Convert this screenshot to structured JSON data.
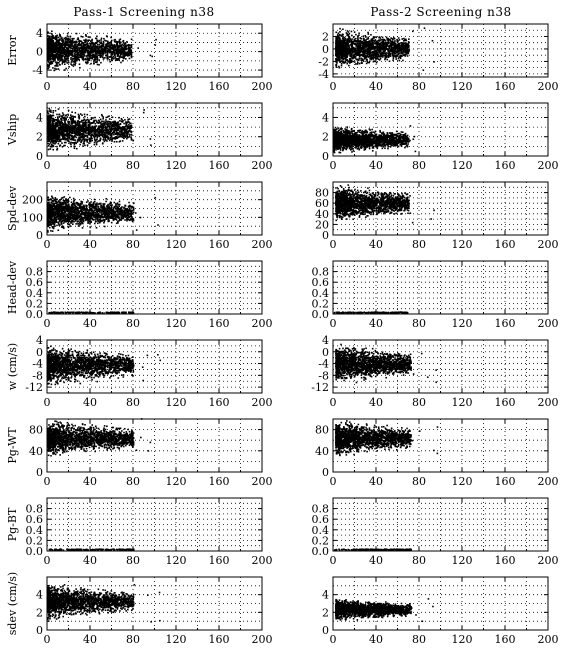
{
  "chart_data": {
    "type": "scatter",
    "columns": [
      {
        "title": "Pass-1 Screening n38"
      },
      {
        "title": "Pass-2 Screening n38"
      }
    ],
    "xticks": [
      "0",
      "40",
      "80",
      "120",
      "160",
      "200"
    ],
    "xlim": [
      0,
      200
    ],
    "grid": true,
    "marker_color": "#000000",
    "rows": [
      {
        "ylabel": "Error",
        "left": {
          "ylim": [
            -5.5,
            6
          ],
          "yticks": [
            "-4",
            "0",
            "4"
          ],
          "yvals": [
            -4,
            0,
            4
          ],
          "x_extent": [
            0,
            78
          ],
          "y_band": [
            -5.0,
            5.2
          ],
          "line": false
        },
        "right": {
          "ylim": [
            -4.5,
            4
          ],
          "yticks": [
            "-4",
            "-2",
            "0",
            "2"
          ],
          "yvals": [
            -4,
            -2,
            0,
            2
          ],
          "x_extent": [
            2,
            70
          ],
          "y_band": [
            -3.8,
            3.6
          ],
          "line": false
        }
      },
      {
        "ylabel": "Vship",
        "left": {
          "ylim": [
            0,
            5.5
          ],
          "yticks": [
            "0",
            "2",
            "4"
          ],
          "yvals": [
            0,
            2,
            4
          ],
          "x_extent": [
            0,
            78
          ],
          "y_band": [
            0,
            5.2
          ],
          "line": false
        },
        "right": {
          "ylim": [
            0,
            5.5
          ],
          "yticks": [
            "0",
            "2",
            "4"
          ],
          "yvals": [
            0,
            2,
            4
          ],
          "x_extent": [
            0,
            70
          ],
          "y_band": [
            0,
            3.2
          ],
          "line": false
        }
      },
      {
        "ylabel": "Spd-dev",
        "left": {
          "ylim": [
            0,
            300
          ],
          "yticks": [
            "0",
            "100",
            "200"
          ],
          "yvals": [
            0,
            100,
            200
          ],
          "x_extent": [
            0,
            80
          ],
          "y_band": [
            0,
            240
          ],
          "line": false
        },
        "right": {
          "ylim": [
            0,
            100
          ],
          "yticks": [
            "0",
            "20",
            "40",
            "60",
            "80"
          ],
          "yvals": [
            0,
            20,
            40,
            60,
            80
          ],
          "x_extent": [
            2,
            70
          ],
          "y_band": [
            20,
            96
          ],
          "line": false
        }
      },
      {
        "ylabel": "Head-dev",
        "left": {
          "ylim": [
            0,
            1
          ],
          "yticks": [
            "0.0",
            "0.2",
            "0.4",
            "0.6",
            "0.8"
          ],
          "yvals": [
            0,
            0.2,
            0.4,
            0.6,
            0.8
          ],
          "x_extent": [
            0,
            80
          ],
          "y_band": [
            0,
            0.02
          ],
          "line": true
        },
        "right": {
          "ylim": [
            0,
            1
          ],
          "yticks": [
            "0.0",
            "0.2",
            "0.4",
            "0.6",
            "0.8"
          ],
          "yvals": [
            0,
            0.2,
            0.4,
            0.6,
            0.8
          ],
          "x_extent": [
            0,
            70
          ],
          "y_band": [
            0,
            0.02
          ],
          "line": true
        }
      },
      {
        "ylabel": "w (cm/s)",
        "left": {
          "ylim": [
            -14,
            4
          ],
          "yticks": [
            "-12",
            "-8",
            "-4",
            "0",
            "4"
          ],
          "yvals": [
            -12,
            -8,
            -4,
            0,
            4
          ],
          "x_extent": [
            0,
            80
          ],
          "y_band": [
            -13,
            3
          ],
          "line": false
        },
        "right": {
          "ylim": [
            -14,
            4
          ],
          "yticks": [
            "-12",
            "-8",
            "-4",
            "0",
            "4"
          ],
          "yvals": [
            -12,
            -8,
            -4,
            0,
            4
          ],
          "x_extent": [
            2,
            72
          ],
          "y_band": [
            -12,
            3
          ],
          "line": false
        }
      },
      {
        "ylabel": "Pg-WT",
        "left": {
          "ylim": [
            0,
            100
          ],
          "yticks": [
            "0",
            "40",
            "80"
          ],
          "yvals": [
            0,
            40,
            80
          ],
          "x_extent": [
            0,
            80
          ],
          "y_band": [
            24,
            100
          ],
          "line": false
        },
        "right": {
          "ylim": [
            0,
            100
          ],
          "yticks": [
            "0",
            "40",
            "80"
          ],
          "yvals": [
            0,
            40,
            80
          ],
          "x_extent": [
            2,
            72
          ],
          "y_band": [
            24,
            100
          ],
          "line": false
        }
      },
      {
        "ylabel": "Pg-BT",
        "left": {
          "ylim": [
            0,
            1
          ],
          "yticks": [
            "0.0",
            "0.2",
            "0.4",
            "0.6",
            "0.8"
          ],
          "yvals": [
            0,
            0.2,
            0.4,
            0.6,
            0.8
          ],
          "x_extent": [
            0,
            80
          ],
          "y_band": [
            0,
            0.02
          ],
          "line": true
        },
        "right": {
          "ylim": [
            0,
            1
          ],
          "yticks": [
            "0.0",
            "0.2",
            "0.4",
            "0.6",
            "0.8"
          ],
          "yvals": [
            0,
            0.2,
            0.4,
            0.6,
            0.8
          ],
          "x_extent": [
            0,
            72
          ],
          "y_band": [
            0,
            0.02
          ],
          "line": true
        }
      },
      {
        "ylabel": "sdev (cm/s)",
        "left": {
          "ylim": [
            0,
            6
          ],
          "yticks": [
            "0",
            "2",
            "4"
          ],
          "yvals": [
            0,
            2,
            4
          ],
          "x_extent": [
            0,
            80
          ],
          "y_band": [
            0.8,
            5.4
          ],
          "line": false
        },
        "right": {
          "ylim": [
            0,
            6
          ],
          "yticks": [
            "0",
            "2",
            "4"
          ],
          "yvals": [
            0,
            2,
            4
          ],
          "x_extent": [
            2,
            72
          ],
          "y_band": [
            0.8,
            3.6
          ],
          "line": false
        }
      }
    ]
  }
}
